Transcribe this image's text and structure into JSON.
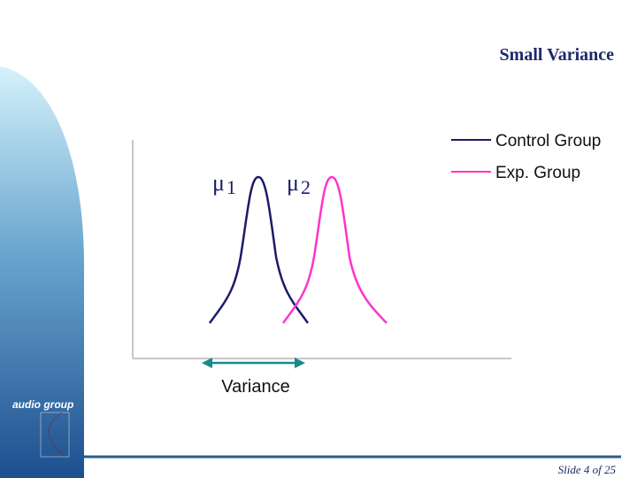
{
  "title": "Small Variance",
  "legend": [
    {
      "label": "Control Group",
      "color": "#1c1a6b"
    },
    {
      "label": "Exp. Group",
      "color": "#ff33cc"
    }
  ],
  "means": [
    {
      "symbol": "μ",
      "subscript": "1"
    },
    {
      "symbol": "μ",
      "subscript": "2"
    }
  ],
  "annotation": "Variance",
  "logo": "audio group",
  "footer": "Slide 4 of 25"
}
